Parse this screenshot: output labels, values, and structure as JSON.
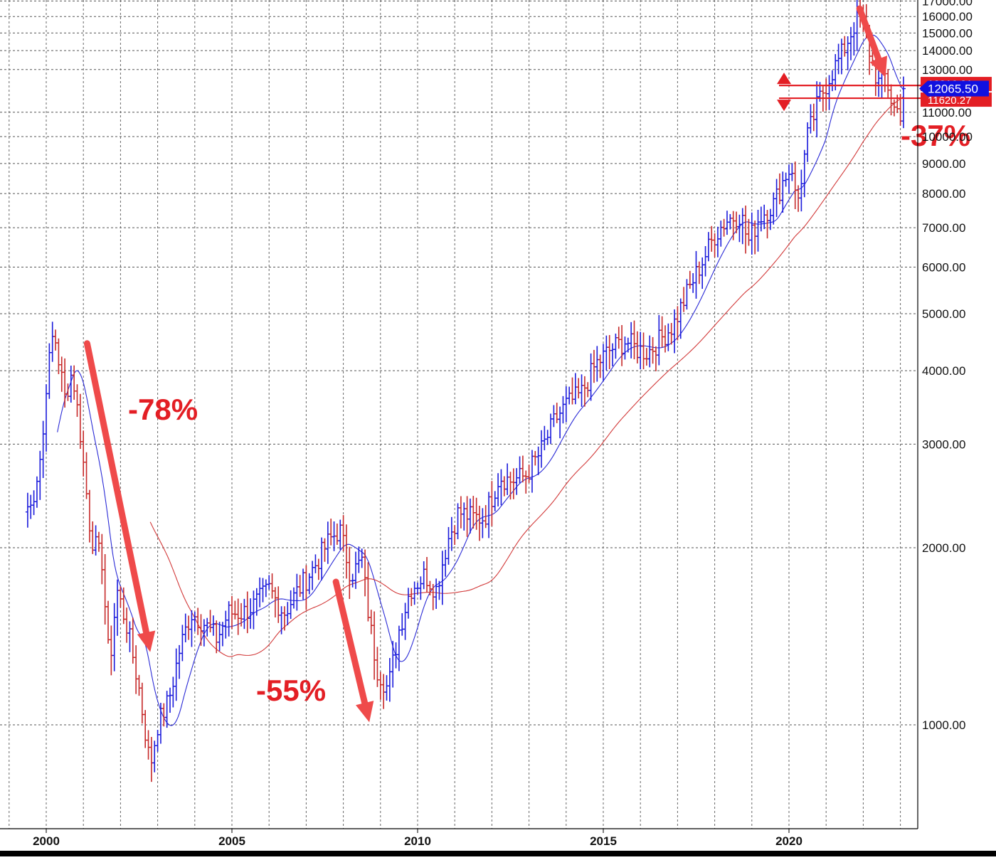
{
  "chart_data": {
    "type": "ohlc",
    "scale": "log",
    "ylim": [
      650,
      17000
    ],
    "xlim": [
      1999.0,
      2023.4
    ],
    "grid": true,
    "y_ticks": [
      "17000.00",
      "16000.00",
      "15000.00",
      "14000.00",
      "13000.00",
      "11000.00",
      "10000.00",
      "9000.00",
      "8000.00",
      "7000.00",
      "6000.00",
      "5000.00",
      "4000.00",
      "3000.00",
      "2000.00",
      "1000.00"
    ],
    "x_ticks": [
      "2000",
      "2005",
      "2010",
      "2015",
      "2020"
    ],
    "colors": {
      "up_bar": "#1a1adb",
      "down_bar": "#c62828",
      "ma_short": "#2b2bd6",
      "ma_long": "#d23a3a",
      "annotation": "#e31e24",
      "price_tag": "#1010e0"
    },
    "monthly_close_anchors": [
      {
        "x": 1999.6,
        "y": 2350
      },
      {
        "x": 1999.9,
        "y": 3000
      },
      {
        "x": 2000.0,
        "y": 3800
      },
      {
        "x": 2000.2,
        "y": 4700
      },
      {
        "x": 2000.5,
        "y": 3600
      },
      {
        "x": 2000.7,
        "y": 4000
      },
      {
        "x": 2000.9,
        "y": 3200
      },
      {
        "x": 2001.2,
        "y": 2100
      },
      {
        "x": 2001.5,
        "y": 1900
      },
      {
        "x": 2001.7,
        "y": 1250
      },
      {
        "x": 2001.9,
        "y": 1700
      },
      {
        "x": 2002.2,
        "y": 1450
      },
      {
        "x": 2002.5,
        "y": 1150
      },
      {
        "x": 2002.8,
        "y": 850
      },
      {
        "x": 2003.0,
        "y": 1000
      },
      {
        "x": 2003.3,
        "y": 1100
      },
      {
        "x": 2003.6,
        "y": 1350
      },
      {
        "x": 2003.9,
        "y": 1550
      },
      {
        "x": 2004.2,
        "y": 1500
      },
      {
        "x": 2004.6,
        "y": 1400
      },
      {
        "x": 2004.9,
        "y": 1550
      },
      {
        "x": 2005.3,
        "y": 1550
      },
      {
        "x": 2005.6,
        "y": 1600
      },
      {
        "x": 2006.0,
        "y": 1700
      },
      {
        "x": 2006.4,
        "y": 1550
      },
      {
        "x": 2006.8,
        "y": 1700
      },
      {
        "x": 2007.2,
        "y": 1850
      },
      {
        "x": 2007.6,
        "y": 2050
      },
      {
        "x": 2007.9,
        "y": 2150
      },
      {
        "x": 2008.2,
        "y": 1800
      },
      {
        "x": 2008.5,
        "y": 1900
      },
      {
        "x": 2008.7,
        "y": 1500
      },
      {
        "x": 2008.9,
        "y": 1250
      },
      {
        "x": 2009.2,
        "y": 1150
      },
      {
        "x": 2009.5,
        "y": 1450
      },
      {
        "x": 2009.8,
        "y": 1700
      },
      {
        "x": 2010.2,
        "y": 1800
      },
      {
        "x": 2010.5,
        "y": 1700
      },
      {
        "x": 2010.8,
        "y": 2050
      },
      {
        "x": 2011.1,
        "y": 2300
      },
      {
        "x": 2011.5,
        "y": 2250
      },
      {
        "x": 2011.8,
        "y": 2250
      },
      {
        "x": 2012.2,
        "y": 2650
      },
      {
        "x": 2012.5,
        "y": 2600
      },
      {
        "x": 2012.9,
        "y": 2650
      },
      {
        "x": 2013.3,
        "y": 2900
      },
      {
        "x": 2013.7,
        "y": 3300
      },
      {
        "x": 2014.0,
        "y": 3500
      },
      {
        "x": 2014.4,
        "y": 3650
      },
      {
        "x": 2014.8,
        "y": 4100
      },
      {
        "x": 2015.2,
        "y": 4350
      },
      {
        "x": 2015.6,
        "y": 4500
      },
      {
        "x": 2015.9,
        "y": 4350
      },
      {
        "x": 2016.2,
        "y": 4300
      },
      {
        "x": 2016.5,
        "y": 4500
      },
      {
        "x": 2016.9,
        "y": 4800
      },
      {
        "x": 2017.3,
        "y": 5500
      },
      {
        "x": 2017.7,
        "y": 6200
      },
      {
        "x": 2018.0,
        "y": 6800
      },
      {
        "x": 2018.3,
        "y": 7200
      },
      {
        "x": 2018.7,
        "y": 7400
      },
      {
        "x": 2018.9,
        "y": 6600
      },
      {
        "x": 2019.2,
        "y": 7300
      },
      {
        "x": 2019.6,
        "y": 7700
      },
      {
        "x": 2019.9,
        "y": 8600
      },
      {
        "x": 2020.1,
        "y": 8900
      },
      {
        "x": 2020.2,
        "y": 7500
      },
      {
        "x": 2020.5,
        "y": 10000
      },
      {
        "x": 2020.8,
        "y": 11500
      },
      {
        "x": 2021.1,
        "y": 12700
      },
      {
        "x": 2021.4,
        "y": 13700
      },
      {
        "x": 2021.7,
        "y": 15200
      },
      {
        "x": 2021.9,
        "y": 16300
      },
      {
        "x": 2022.1,
        "y": 14500
      },
      {
        "x": 2022.4,
        "y": 12300
      },
      {
        "x": 2022.6,
        "y": 12700
      },
      {
        "x": 2022.8,
        "y": 11200
      },
      {
        "x": 2023.0,
        "y": 11000
      },
      {
        "x": 2023.1,
        "y": 12065.5
      }
    ],
    "price_tag": "12065.50",
    "hidden_price_labels": [
      "12216.21",
      "11620.27"
    ],
    "annotations": [
      {
        "label": "-78%",
        "from": [
          2001.1,
          4450
        ],
        "to": [
          2002.8,
          1330
        ]
      },
      {
        "label": "-55%",
        "from": [
          2007.8,
          1750
        ],
        "to": [
          2008.7,
          1010
        ]
      },
      {
        "label": "-37%",
        "from": [
          2021.9,
          16500
        ],
        "to": [
          2022.6,
          12600
        ]
      }
    ],
    "horizontal_lines": [
      12216.21,
      11620.27
    ]
  }
}
